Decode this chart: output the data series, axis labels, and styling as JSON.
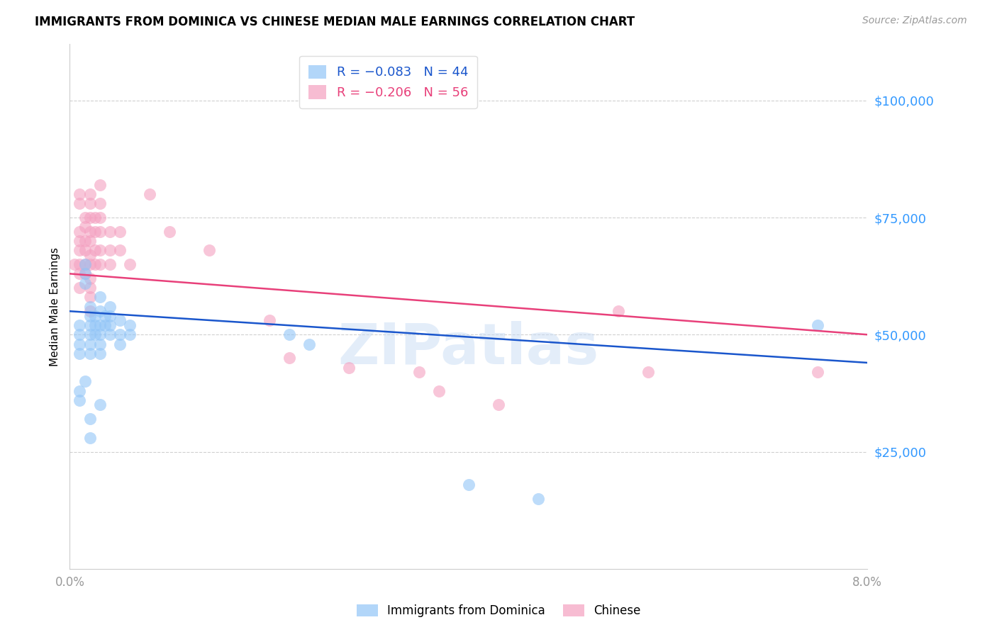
{
  "title": "IMMIGRANTS FROM DOMINICA VS CHINESE MEDIAN MALE EARNINGS CORRELATION CHART",
  "source": "Source: ZipAtlas.com",
  "ylabel": "Median Male Earnings",
  "ytick_values": [
    25000,
    50000,
    75000,
    100000
  ],
  "ymin": 0,
  "ymax": 112000,
  "xmin": 0.0,
  "xmax": 0.08,
  "xtick_values": [
    0.0,
    0.08
  ],
  "xtick_labels": [
    "0.0%",
    "8.0%"
  ],
  "legend_labels": [
    "Immigrants from Dominica",
    "Chinese"
  ],
  "watermark": "ZIPatlas",
  "blue_color": "#92c5f7",
  "pink_color": "#f4a0c0",
  "blue_line_color": "#1a56cc",
  "pink_line_color": "#e8407a",
  "axis_color": "#3399ff",
  "title_fontsize": 12,
  "dominica_line": [
    [
      0.0,
      55000
    ],
    [
      0.08,
      44000
    ]
  ],
  "chinese_line": [
    [
      0.0,
      63000
    ],
    [
      0.08,
      50000
    ]
  ],
  "dominica_points": [
    [
      0.001,
      52000
    ],
    [
      0.001,
      50000
    ],
    [
      0.001,
      48000
    ],
    [
      0.001,
      46000
    ],
    [
      0.0015,
      65000
    ],
    [
      0.0015,
      63000
    ],
    [
      0.0015,
      61000
    ],
    [
      0.002,
      56000
    ],
    [
      0.002,
      54000
    ],
    [
      0.002,
      52000
    ],
    [
      0.002,
      50000
    ],
    [
      0.002,
      48000
    ],
    [
      0.002,
      46000
    ],
    [
      0.0025,
      54000
    ],
    [
      0.0025,
      52000
    ],
    [
      0.0025,
      50000
    ],
    [
      0.003,
      58000
    ],
    [
      0.003,
      55000
    ],
    [
      0.003,
      52000
    ],
    [
      0.003,
      50000
    ],
    [
      0.003,
      48000
    ],
    [
      0.003,
      46000
    ],
    [
      0.0035,
      54000
    ],
    [
      0.0035,
      52000
    ],
    [
      0.004,
      56000
    ],
    [
      0.004,
      54000
    ],
    [
      0.004,
      52000
    ],
    [
      0.004,
      50000
    ],
    [
      0.005,
      53000
    ],
    [
      0.005,
      50000
    ],
    [
      0.005,
      48000
    ],
    [
      0.006,
      52000
    ],
    [
      0.006,
      50000
    ],
    [
      0.001,
      38000
    ],
    [
      0.001,
      36000
    ],
    [
      0.0015,
      40000
    ],
    [
      0.002,
      32000
    ],
    [
      0.002,
      28000
    ],
    [
      0.003,
      35000
    ],
    [
      0.022,
      50000
    ],
    [
      0.024,
      48000
    ],
    [
      0.04,
      18000
    ],
    [
      0.047,
      15000
    ],
    [
      0.075,
      52000
    ]
  ],
  "chinese_points": [
    [
      0.0005,
      65000
    ],
    [
      0.001,
      80000
    ],
    [
      0.001,
      78000
    ],
    [
      0.001,
      72000
    ],
    [
      0.001,
      70000
    ],
    [
      0.001,
      68000
    ],
    [
      0.001,
      65000
    ],
    [
      0.001,
      63000
    ],
    [
      0.001,
      60000
    ],
    [
      0.0015,
      75000
    ],
    [
      0.0015,
      73000
    ],
    [
      0.0015,
      70000
    ],
    [
      0.0015,
      68000
    ],
    [
      0.0015,
      65000
    ],
    [
      0.0015,
      63000
    ],
    [
      0.002,
      80000
    ],
    [
      0.002,
      78000
    ],
    [
      0.002,
      75000
    ],
    [
      0.002,
      72000
    ],
    [
      0.002,
      70000
    ],
    [
      0.002,
      67000
    ],
    [
      0.002,
      65000
    ],
    [
      0.002,
      62000
    ],
    [
      0.002,
      60000
    ],
    [
      0.002,
      58000
    ],
    [
      0.002,
      55000
    ],
    [
      0.0025,
      75000
    ],
    [
      0.0025,
      72000
    ],
    [
      0.0025,
      68000
    ],
    [
      0.0025,
      65000
    ],
    [
      0.003,
      82000
    ],
    [
      0.003,
      78000
    ],
    [
      0.003,
      75000
    ],
    [
      0.003,
      72000
    ],
    [
      0.003,
      68000
    ],
    [
      0.003,
      65000
    ],
    [
      0.004,
      72000
    ],
    [
      0.004,
      68000
    ],
    [
      0.004,
      65000
    ],
    [
      0.005,
      72000
    ],
    [
      0.005,
      68000
    ],
    [
      0.006,
      65000
    ],
    [
      0.008,
      80000
    ],
    [
      0.01,
      72000
    ],
    [
      0.014,
      68000
    ],
    [
      0.02,
      53000
    ],
    [
      0.022,
      45000
    ],
    [
      0.028,
      43000
    ],
    [
      0.035,
      42000
    ],
    [
      0.037,
      38000
    ],
    [
      0.043,
      35000
    ],
    [
      0.055,
      55000
    ],
    [
      0.058,
      42000
    ],
    [
      0.075,
      42000
    ]
  ]
}
